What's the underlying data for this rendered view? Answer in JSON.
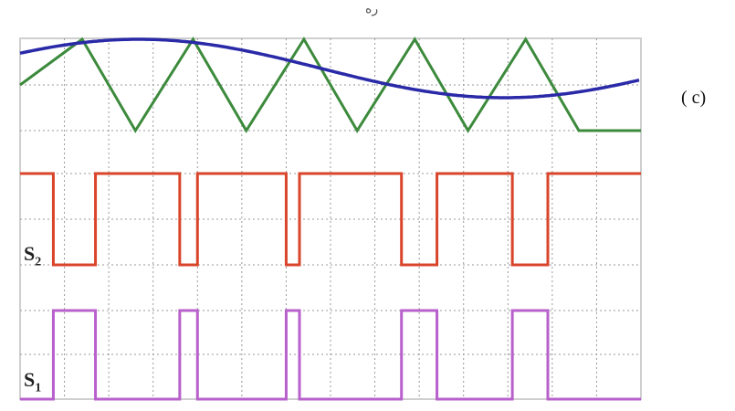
{
  "figure": {
    "top_mark": "ره",
    "panel_tag": "( c)",
    "colors": {
      "background": "#ffffff",
      "frame": "#cfcfcf",
      "grid": "#9a9a9a",
      "triangle_carrier": "#3c8a3c",
      "sine_reference": "#2a2aa8",
      "s2_pulse": "#d9452b",
      "s1_pulse": "#b860cc"
    }
  },
  "signals": {
    "carrier": {
      "type": "triangle",
      "peaks_at_div": [
        1.4,
        3.9,
        6.4,
        8.9,
        11.4
      ],
      "troughs_at_div": [
        0.0,
        2.6,
        5.1,
        7.6,
        10.1,
        12.6
      ]
    },
    "reference": {
      "type": "sine",
      "cycles_visible": 0.85
    },
    "s2": {
      "label_main": "S",
      "label_sub": "2",
      "transitions": [
        0.0,
        0.75,
        1.7,
        3.6,
        4.0,
        6.0,
        6.3,
        8.6,
        9.4,
        11.1,
        11.9,
        12.6
      ]
    },
    "s1": {
      "label_main": "S",
      "label_sub": "1",
      "transitions": [
        0.0,
        0.75,
        1.7,
        3.6,
        4.0,
        6.0,
        6.3,
        8.6,
        9.4,
        11.1,
        11.9,
        12.6
      ]
    }
  }
}
